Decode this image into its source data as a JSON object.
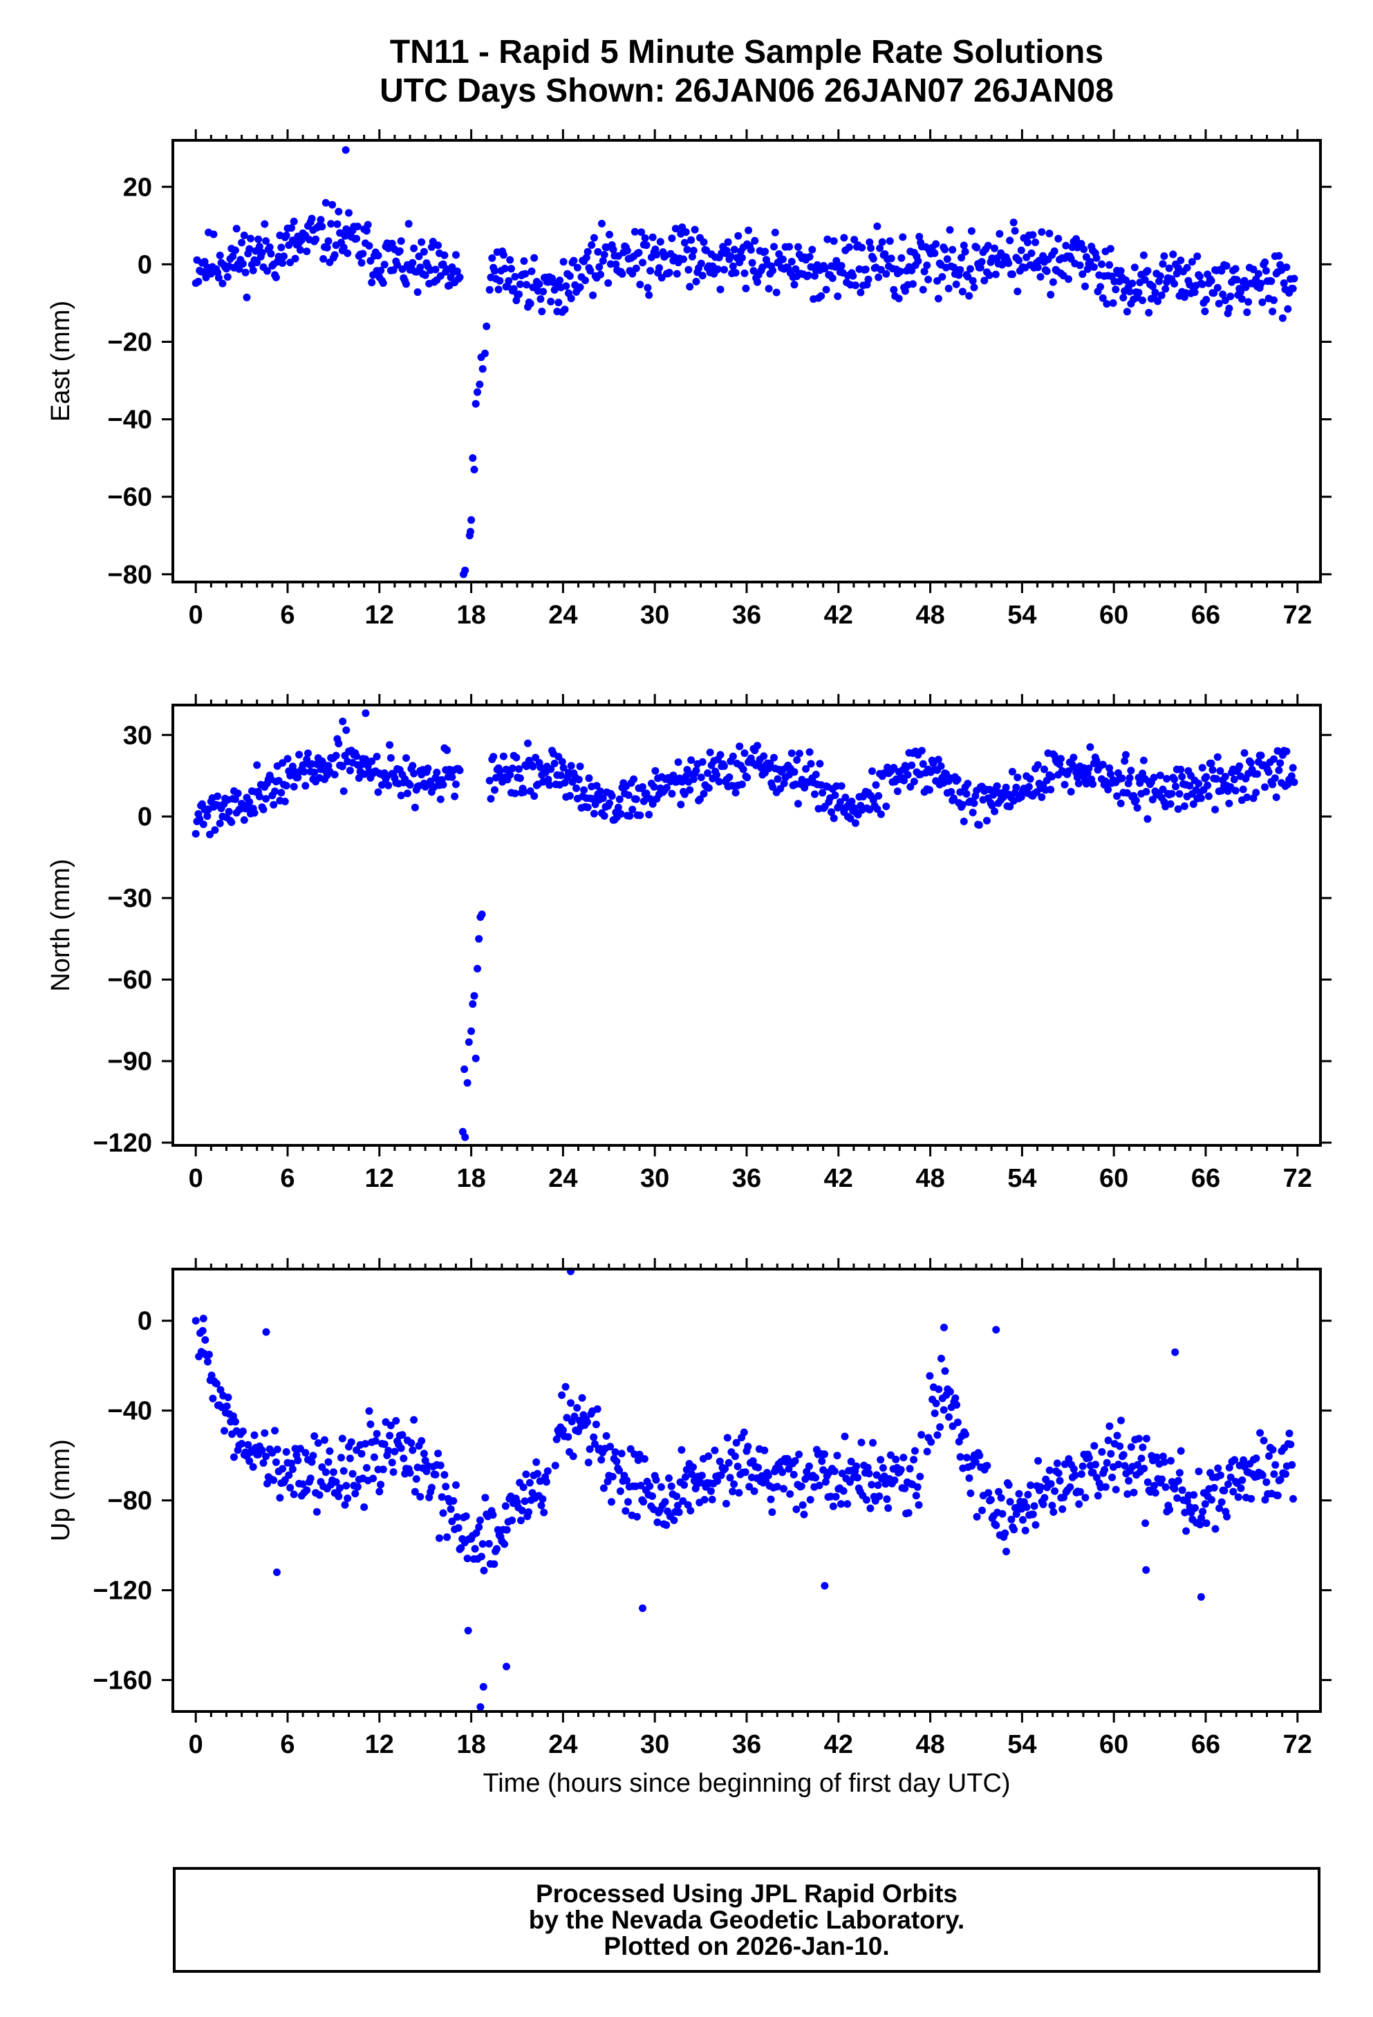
{
  "title": {
    "line1": "TN11 - Rapid 5 Minute Sample Rate Solutions",
    "line2": "UTC Days Shown:  26JAN06 26JAN07 26JAN08"
  },
  "credits": {
    "line1": "Processed Using JPL Rapid Orbits",
    "line2": "by the Nevada Geodetic Laboratory.",
    "line3": "Plotted on 2026-Jan-10."
  },
  "marker_color": "#0000ff",
  "chart_data": [
    {
      "type": "scatter",
      "id": "east",
      "ylabel": "East (mm)",
      "xlabel": "",
      "xlim": [
        -1.5,
        73.5
      ],
      "ylim": [
        -82,
        32
      ],
      "xticks": [
        0,
        6,
        12,
        18,
        24,
        30,
        36,
        42,
        48,
        54,
        60,
        66,
        72
      ],
      "yticks": [
        -80,
        -60,
        -40,
        -20,
        0,
        20
      ],
      "ytick_labels": [
        "−80",
        "−60",
        "−40",
        "−20",
        "0",
        "20"
      ],
      "outliers": {
        "x": [
          9.8,
          17.5,
          17.6,
          17.9,
          18.0,
          17.95,
          18.1,
          18.2,
          18.3,
          18.4,
          18.55,
          18.65,
          18.75,
          18.9,
          19.0
        ],
        "y": [
          29.5,
          -80,
          -79,
          -70,
          -66,
          -69,
          -50,
          -53,
          -36,
          -33,
          -31,
          -24,
          -27,
          -23,
          -16
        ]
      },
      "segments": [
        {
          "start": 0,
          "end": 17.3,
          "trend": [
            [
              0,
              0
            ],
            [
              5,
              3
            ],
            [
              9,
              8
            ],
            [
              12,
              2
            ],
            [
              15,
              -2
            ],
            [
              17.3,
              -3
            ]
          ],
          "noise": 5.5,
          "seed": 11
        },
        {
          "start": 19.2,
          "end": 71.8,
          "trend": [
            [
              19.2,
              0
            ],
            [
              22,
              -7
            ],
            [
              24,
              -5
            ],
            [
              27,
              2
            ],
            [
              36,
              2
            ],
            [
              40,
              -2
            ],
            [
              48,
              0
            ],
            [
              54,
              1
            ],
            [
              58,
              3
            ],
            [
              60,
              -5
            ],
            [
              66,
              -5
            ],
            [
              71.8,
              -5
            ]
          ],
          "noise": 5.5,
          "seed": 12
        }
      ]
    },
    {
      "type": "scatter",
      "id": "north",
      "ylabel": "North (mm)",
      "xlabel": "",
      "xlim": [
        -1.5,
        73.5
      ],
      "ylim": [
        -121,
        41
      ],
      "xticks": [
        0,
        6,
        12,
        18,
        24,
        30,
        36,
        42,
        48,
        54,
        60,
        66,
        72
      ],
      "yticks": [
        -120,
        -90,
        -60,
        -30,
        0,
        30
      ],
      "ytick_labels": [
        "−120",
        "−90",
        "−60",
        "−30",
        "0",
        "30"
      ],
      "outliers": {
        "x": [
          9.6,
          11.1,
          17.45,
          17.6,
          17.55,
          17.75,
          17.85,
          18.0,
          18.1,
          18.2,
          18.3,
          18.4,
          18.5,
          18.6,
          18.7
        ],
        "y": [
          35,
          38,
          -116,
          -118,
          -93,
          -98,
          -83,
          -79,
          -69,
          -66,
          -89,
          -56,
          -45,
          -37,
          -36
        ]
      },
      "segments": [
        {
          "start": 0,
          "end": 17.3,
          "trend": [
            [
              0,
              1
            ],
            [
              3,
              5
            ],
            [
              6,
              15
            ],
            [
              10,
              20
            ],
            [
              14,
              14
            ],
            [
              17.3,
              15
            ]
          ],
          "noise": 6,
          "seed": 21
        },
        {
          "start": 19.2,
          "end": 71.8,
          "trend": [
            [
              19.2,
              14
            ],
            [
              24,
              18
            ],
            [
              27,
              3
            ],
            [
              30,
              10
            ],
            [
              36,
              18
            ],
            [
              40,
              15
            ],
            [
              43,
              2
            ],
            [
              47,
              20
            ],
            [
              51,
              5
            ],
            [
              58,
              18
            ],
            [
              62,
              10
            ],
            [
              66,
              12
            ],
            [
              71.8,
              18
            ]
          ],
          "noise": 6,
          "seed": 22
        }
      ]
    },
    {
      "type": "scatter",
      "id": "up",
      "ylabel": "Up (mm)",
      "xlabel": "Time (hours since beginning of first day UTC)",
      "xlim": [
        -1.5,
        73.5
      ],
      "ylim": [
        -174,
        23
      ],
      "xticks": [
        0,
        6,
        12,
        18,
        24,
        30,
        36,
        42,
        48,
        54,
        60,
        66,
        72
      ],
      "yticks": [
        -160,
        -120,
        -80,
        -40,
        0
      ],
      "ytick_labels": [
        "−160",
        "−120",
        "−80",
        "−40",
        "0"
      ],
      "outliers": {
        "x": [
          0,
          0.5,
          4.6,
          5.3,
          24.5,
          48.9,
          52.3,
          17.8,
          18.6,
          18.8,
          20.3,
          29.2,
          41.1,
          62.1,
          64.0,
          65.7
        ],
        "y": [
          0,
          1,
          -5,
          -112,
          22,
          -3,
          -4,
          -138,
          -172,
          -163,
          -154,
          -128,
          -118,
          -111,
          -14,
          -123
        ]
      },
      "segments": [
        {
          "start": 0.2,
          "end": 2.5,
          "trend": [
            [
              0.2,
              -5
            ],
            [
              1,
              -25
            ],
            [
              2.5,
              -50
            ]
          ],
          "noise": 7,
          "seed": 31
        },
        {
          "start": 2.5,
          "end": 23,
          "trend": [
            [
              2.5,
              -55
            ],
            [
              6,
              -65
            ],
            [
              10,
              -70
            ],
            [
              13,
              -55
            ],
            [
              16,
              -75
            ],
            [
              18,
              -100
            ],
            [
              20,
              -95
            ],
            [
              21.5,
              -70
            ],
            [
              23,
              -75
            ]
          ],
          "noise": 12,
          "seed": 32
        },
        {
          "start": 23.5,
          "end": 47.5,
          "trend": [
            [
              23.5,
              -55
            ],
            [
              25,
              -35
            ],
            [
              27,
              -65
            ],
            [
              30,
              -78
            ],
            [
              36,
              -68
            ],
            [
              42,
              -70
            ],
            [
              47.5,
              -72
            ]
          ],
          "noise": 12,
          "seed": 33
        },
        {
          "start": 47.8,
          "end": 71.8,
          "trend": [
            [
              47.8,
              -45
            ],
            [
              49,
              -30
            ],
            [
              50.5,
              -65
            ],
            [
              53,
              -88
            ],
            [
              57,
              -72
            ],
            [
              60,
              -60
            ],
            [
              63,
              -70
            ],
            [
              66,
              -78
            ],
            [
              69,
              -70
            ],
            [
              71.8,
              -65
            ]
          ],
          "noise": 12,
          "seed": 34
        }
      ]
    }
  ]
}
